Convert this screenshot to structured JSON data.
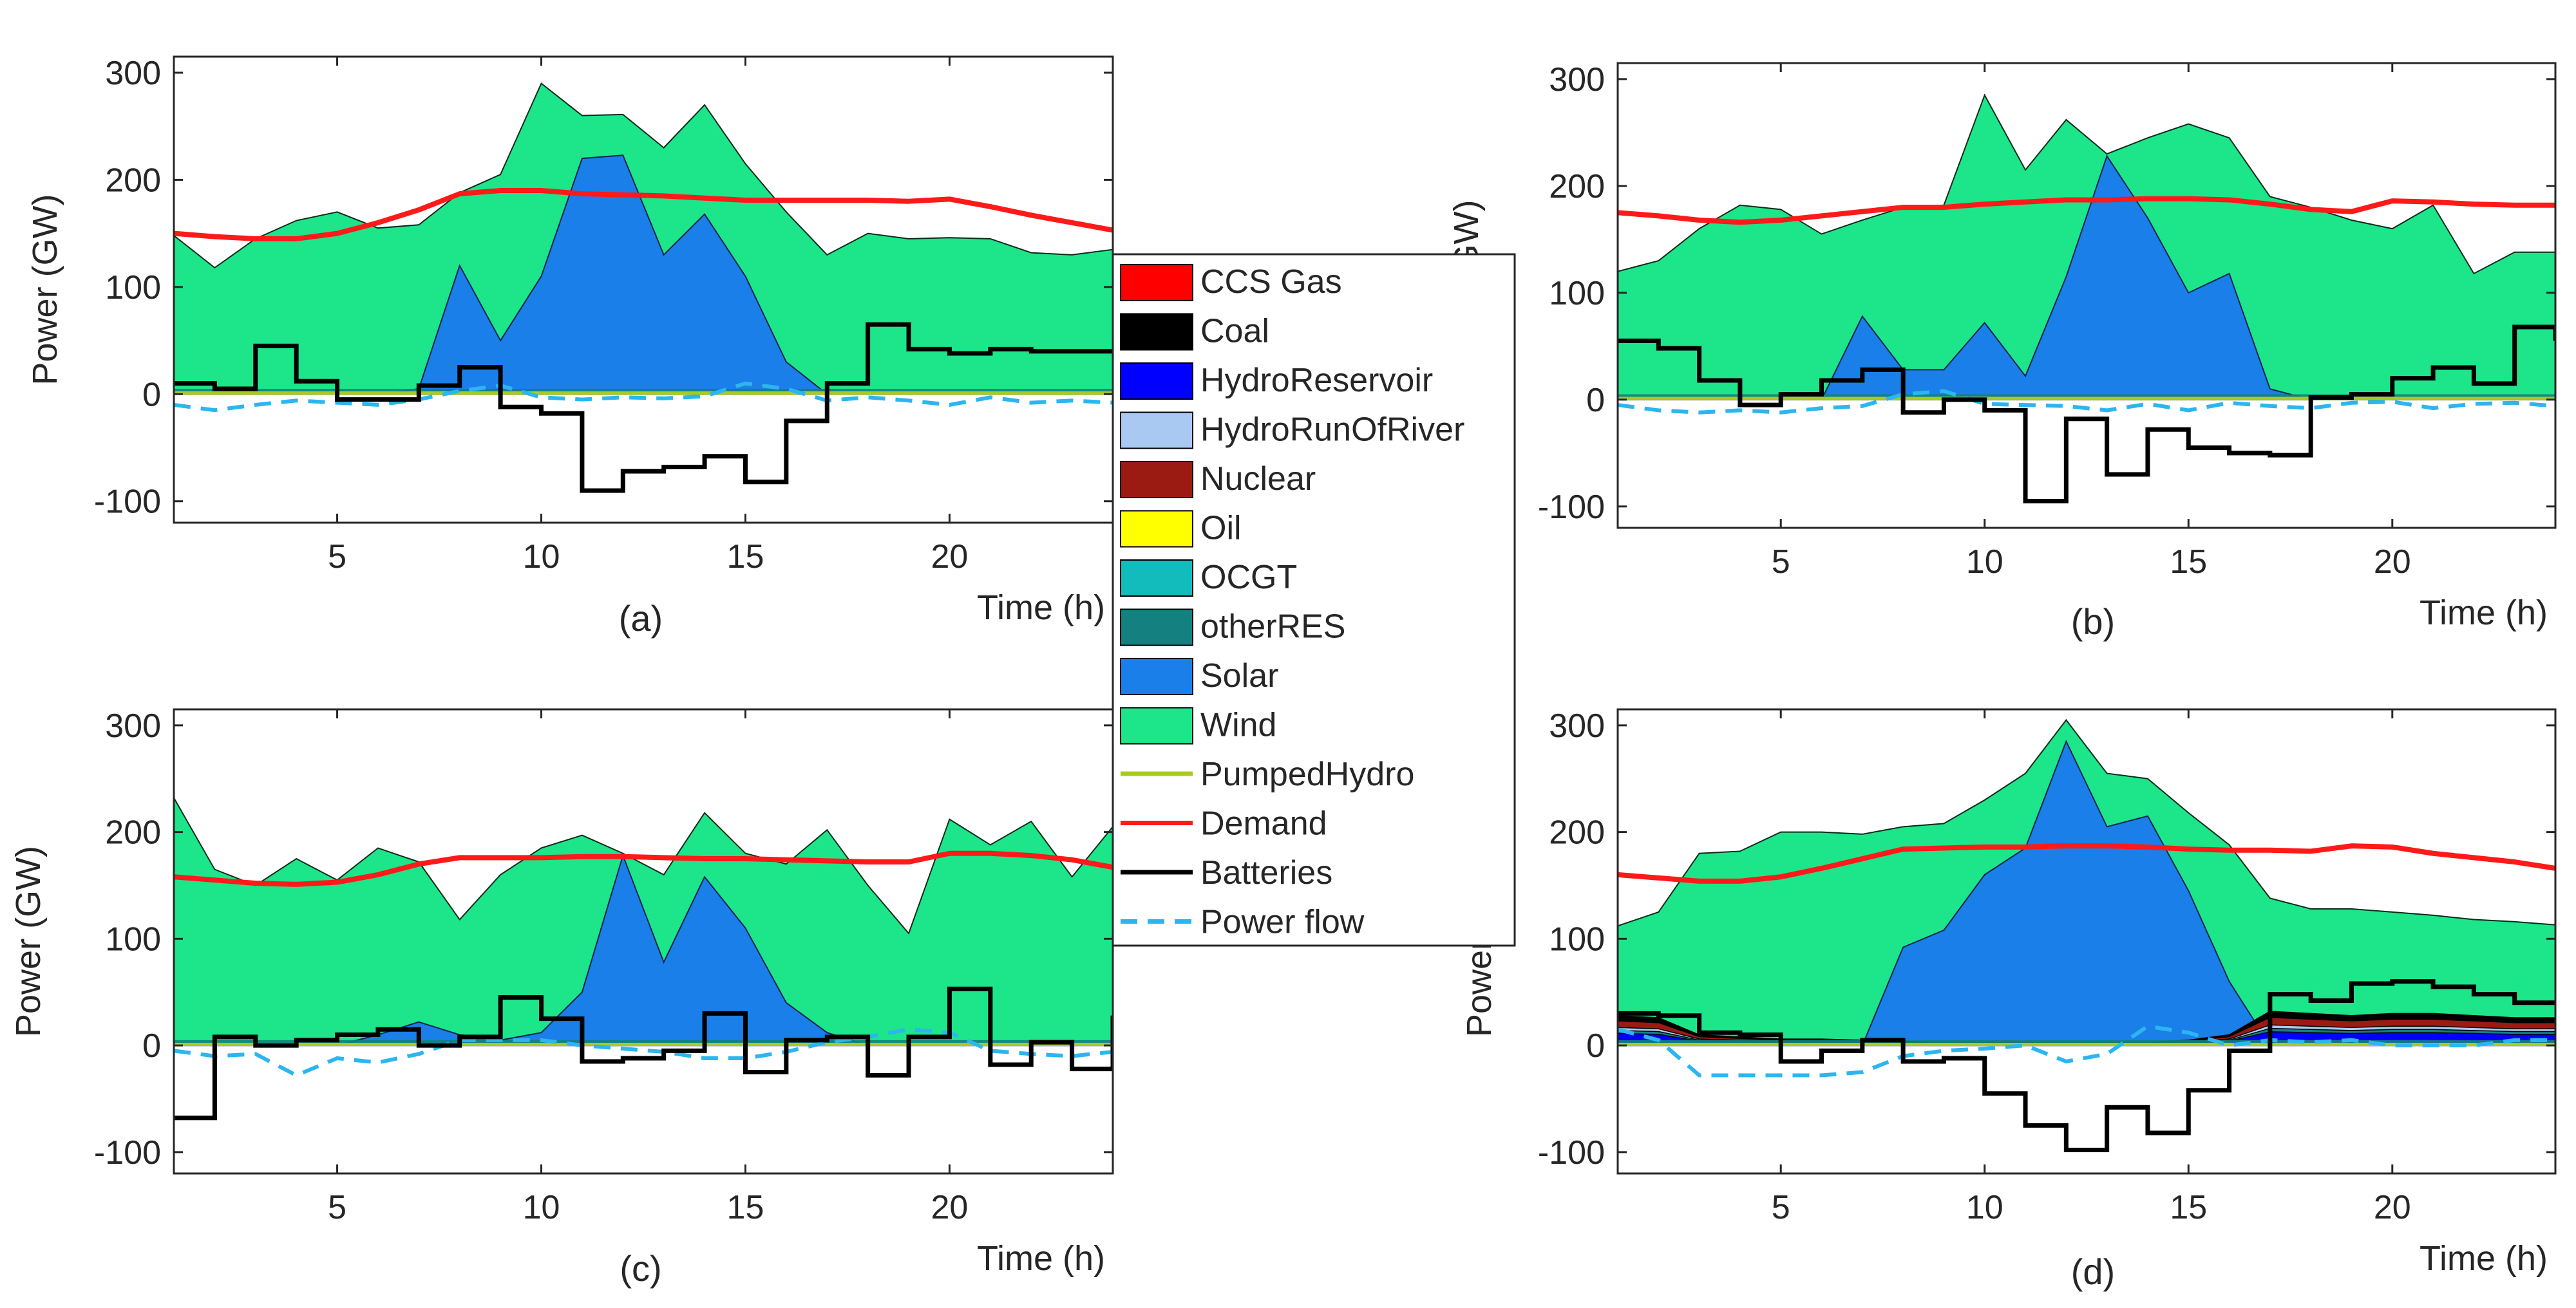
{
  "figure": {
    "title": ""
  },
  "legend": {
    "items": [
      {
        "label": "CCS Gas",
        "kind": "patch",
        "color": "#ff0000"
      },
      {
        "label": "Coal",
        "kind": "patch",
        "color": "#000000"
      },
      {
        "label": "HydroReservoir",
        "kind": "patch",
        "color": "#0000ff"
      },
      {
        "label": "HydroRunOfRiver",
        "kind": "patch",
        "color": "#a9c9f2"
      },
      {
        "label": "Nuclear",
        "kind": "patch",
        "color": "#9b1a12"
      },
      {
        "label": "Oil",
        "kind": "patch",
        "color": "#ffff00"
      },
      {
        "label": "OCGT",
        "kind": "patch",
        "color": "#13bcbc"
      },
      {
        "label": "otherRES",
        "kind": "patch",
        "color": "#148080"
      },
      {
        "label": "Solar",
        "kind": "patch",
        "color": "#1a7fe8"
      },
      {
        "label": "Wind",
        "kind": "patch",
        "color": "#1de58a"
      },
      {
        "label": "PumpedHydro",
        "kind": "line",
        "color": "#a8cc1e"
      },
      {
        "label": "Demand",
        "kind": "line",
        "color": "#ff1a1a"
      },
      {
        "label": "Batteries",
        "kind": "line",
        "color": "#000000"
      },
      {
        "label": "Power flow",
        "kind": "dashed",
        "color": "#2bb6ef"
      }
    ]
  },
  "chart_data": [
    {
      "panel": "(a)",
      "type": "area",
      "xlabel": "Time (h)",
      "ylabel": "Power (GW)",
      "xlim": [
        1,
        24
      ],
      "ylim": [
        -120,
        315
      ],
      "xticks": [
        "5",
        "10",
        "15",
        "20"
      ],
      "yticks": [
        "-100",
        "0",
        "100",
        "200",
        "300"
      ],
      "x": [
        1,
        2,
        3,
        4,
        5,
        6,
        7,
        8,
        9,
        10,
        11,
        12,
        13,
        14,
        15,
        16,
        17,
        18,
        19,
        20,
        21,
        22,
        23,
        24
      ],
      "series": [
        {
          "name": "Solar",
          "values": [
            0,
            0,
            0,
            0,
            0,
            0,
            5,
            120,
            50,
            110,
            220,
            223,
            130,
            168,
            110,
            30,
            0,
            0,
            0,
            0,
            0,
            0,
            0,
            0
          ]
        },
        {
          "name": "Wind",
          "values": [
            148,
            118,
            145,
            162,
            170,
            155,
            158,
            188,
            205,
            290,
            260,
            261,
            230,
            270,
            215,
            170,
            130,
            150,
            145,
            146,
            145,
            132,
            130,
            135
          ]
        },
        {
          "name": "Demand",
          "values": [
            150,
            147,
            145,
            145,
            150,
            160,
            172,
            187,
            190,
            190,
            187,
            186,
            185,
            183,
            181,
            181,
            181,
            181,
            180,
            182,
            175,
            167,
            160,
            153
          ]
        },
        {
          "name": "Batteries",
          "values": [
            10,
            5,
            45,
            12,
            -5,
            -5,
            8,
            25,
            -12,
            -18,
            -90,
            -72,
            -68,
            -58,
            -82,
            -25,
            10,
            65,
            42,
            38,
            42,
            40,
            40,
            42
          ]
        },
        {
          "name": "Power flow",
          "values": [
            -10,
            -15,
            -10,
            -6,
            -8,
            -10,
            -5,
            3,
            8,
            -3,
            -5,
            -3,
            -4,
            -2,
            10,
            5,
            -6,
            -3,
            -6,
            -10,
            -3,
            -8,
            -6,
            -8
          ]
        }
      ]
    },
    {
      "panel": "(b)",
      "type": "area",
      "xlabel": "Time (h)",
      "ylabel": "Power (GW)",
      "xlim": [
        1,
        24
      ],
      "ylim": [
        -120,
        315
      ],
      "xticks": [
        "5",
        "10",
        "15",
        "20"
      ],
      "yticks": [
        "-100",
        "0",
        "100",
        "200",
        "300"
      ],
      "x": [
        1,
        2,
        3,
        4,
        5,
        6,
        7,
        8,
        9,
        10,
        11,
        12,
        13,
        14,
        15,
        16,
        17,
        18,
        19,
        20,
        21,
        22,
        23,
        24
      ],
      "series": [
        {
          "name": "Solar",
          "values": [
            0,
            0,
            0,
            0,
            0,
            0,
            78,
            28,
            28,
            72,
            22,
            115,
            228,
            170,
            100,
            118,
            10,
            0,
            0,
            0,
            0,
            0,
            0,
            0
          ]
        },
        {
          "name": "Wind",
          "values": [
            120,
            130,
            160,
            182,
            178,
            155,
            168,
            180,
            182,
            285,
            215,
            262,
            230,
            245,
            258,
            245,
            190,
            180,
            168,
            160,
            182,
            118,
            138,
            138
          ]
        },
        {
          "name": "Demand",
          "values": [
            175,
            172,
            168,
            166,
            168,
            172,
            176,
            180,
            180,
            183,
            185,
            187,
            187,
            188,
            188,
            187,
            183,
            178,
            176,
            186,
            185,
            183,
            182,
            182
          ]
        },
        {
          "name": "Batteries",
          "values": [
            55,
            48,
            18,
            -5,
            5,
            18,
            28,
            -12,
            0,
            -10,
            -95,
            -18,
            -70,
            -28,
            -45,
            -50,
            -52,
            2,
            5,
            20,
            30,
            15,
            68,
            55
          ]
        },
        {
          "name": "Power flow",
          "values": [
            -5,
            -10,
            -12,
            -10,
            -12,
            -8,
            -6,
            5,
            8,
            -4,
            -5,
            -6,
            -10,
            -4,
            -10,
            -3,
            -6,
            -8,
            -3,
            -2,
            -8,
            -4,
            -3,
            -6
          ]
        }
      ]
    },
    {
      "panel": "(c)",
      "type": "area",
      "xlabel": "Time (h)",
      "ylabel": "Power (GW)",
      "xlim": [
        1,
        24
      ],
      "ylim": [
        -120,
        315
      ],
      "xticks": [
        "5",
        "10",
        "15",
        "20"
      ],
      "yticks": [
        "-100",
        "0",
        "100",
        "200",
        "300"
      ],
      "x": [
        1,
        2,
        3,
        4,
        5,
        6,
        7,
        8,
        9,
        10,
        11,
        12,
        13,
        14,
        15,
        16,
        17,
        18,
        19,
        20,
        21,
        22,
        23,
        24
      ],
      "series": [
        {
          "name": "Solar",
          "values": [
            0,
            0,
            0,
            0,
            0,
            10,
            22,
            10,
            5,
            12,
            50,
            178,
            78,
            158,
            110,
            40,
            12,
            0,
            0,
            0,
            0,
            0,
            0,
            0
          ]
        },
        {
          "name": "Wind",
          "values": [
            232,
            165,
            150,
            175,
            155,
            185,
            172,
            118,
            160,
            185,
            197,
            180,
            160,
            218,
            180,
            170,
            202,
            150,
            105,
            212,
            188,
            210,
            158,
            205
          ]
        },
        {
          "name": "Demand",
          "values": [
            158,
            155,
            152,
            151,
            153,
            160,
            170,
            176,
            176,
            176,
            177,
            177,
            176,
            175,
            175,
            174,
            173,
            172,
            172,
            180,
            180,
            178,
            174,
            167
          ]
        },
        {
          "name": "Batteries",
          "values": [
            -68,
            8,
            0,
            5,
            10,
            15,
            0,
            8,
            45,
            25,
            -15,
            -12,
            -5,
            30,
            -25,
            5,
            8,
            -28,
            8,
            53,
            -18,
            3,
            -22,
            28
          ]
        },
        {
          "name": "Power flow",
          "values": [
            -5,
            -10,
            -8,
            -28,
            -12,
            -16,
            -8,
            5,
            5,
            5,
            0,
            -3,
            -6,
            -12,
            -12,
            -6,
            3,
            8,
            15,
            12,
            -5,
            -8,
            -10,
            -6
          ]
        }
      ]
    },
    {
      "panel": "(d)",
      "type": "area",
      "xlabel": "Time (h)",
      "ylabel": "Power (GW)",
      "xlim": [
        1,
        24
      ],
      "ylim": [
        -120,
        315
      ],
      "xticks": [
        "5",
        "10",
        "15",
        "20"
      ],
      "yticks": [
        "-100",
        "0",
        "100",
        "200",
        "300"
      ],
      "x": [
        1,
        2,
        3,
        4,
        5,
        6,
        7,
        8,
        9,
        10,
        11,
        12,
        13,
        14,
        15,
        16,
        17,
        18,
        19,
        20,
        21,
        22,
        23,
        24
      ],
      "series": [
        {
          "name": "Solar",
          "values": [
            0,
            0,
            0,
            0,
            0,
            0,
            0,
            92,
            108,
            160,
            185,
            285,
            205,
            215,
            145,
            60,
            0,
            0,
            0,
            0,
            0,
            0,
            0,
            0
          ]
        },
        {
          "name": "Wind",
          "values": [
            112,
            125,
            180,
            182,
            200,
            200,
            198,
            205,
            208,
            230,
            255,
            305,
            255,
            250,
            218,
            188,
            138,
            128,
            128,
            125,
            122,
            118,
            116,
            113
          ]
        },
        {
          "name": "Demand",
          "values": [
            160,
            157,
            154,
            154,
            158,
            166,
            175,
            184,
            185,
            186,
            186,
            187,
            187,
            186,
            184,
            183,
            183,
            182,
            187,
            186,
            180,
            176,
            172,
            166
          ]
        },
        {
          "name": "Batteries",
          "values": [
            30,
            28,
            12,
            10,
            -15,
            -5,
            5,
            -15,
            -12,
            -45,
            -75,
            -98,
            -58,
            -82,
            -42,
            -5,
            48,
            42,
            58,
            60,
            55,
            48,
            40,
            42
          ]
        },
        {
          "name": "Power flow",
          "values": [
            15,
            5,
            -28,
            -28,
            -28,
            -28,
            -25,
            -10,
            -5,
            -3,
            0,
            -15,
            -8,
            18,
            12,
            0,
            5,
            3,
            5,
            0,
            0,
            0,
            5,
            5
          ]
        },
        {
          "name": "Other stacked generation (HydroReservoir, Nuclear, Coal)",
          "values": [
            28,
            26,
            10,
            8,
            6,
            6,
            5,
            4,
            3,
            3,
            3,
            3,
            3,
            3,
            5,
            10,
            32,
            30,
            28,
            30,
            30,
            28,
            26,
            26
          ]
        }
      ]
    }
  ]
}
